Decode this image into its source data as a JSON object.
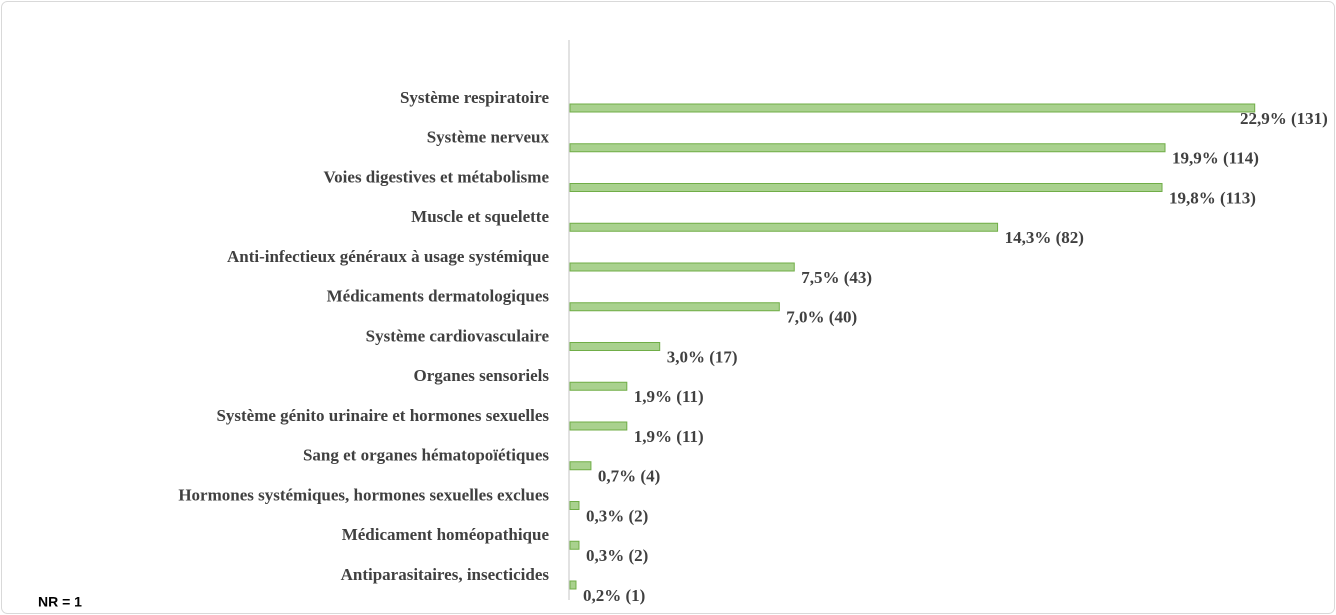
{
  "chart_data": {
    "type": "hbar",
    "categories": [
      "Système respiratoire",
      "Système nerveux",
      "Voies digestives et métabolisme",
      "Muscle et squelette",
      "Anti-infectieux généraux à usage systémique",
      "Médicaments dermatologiques",
      "Système cardiovasculaire",
      "Organes sensoriels",
      "Système génito urinaire et hormones sexuelles",
      "Sang et organes hématopoïétiques",
      "Hormones systémiques, hormones sexuelles exclues",
      "Médicament homéopathique",
      "Antiparasitaires, insecticides"
    ],
    "values": [
      22.9,
      19.9,
      19.8,
      14.3,
      7.5,
      7.0,
      3.0,
      1.9,
      1.9,
      0.7,
      0.3,
      0.3,
      0.2
    ],
    "value_labels": [
      "22,9% (131)",
      "19,9% (114)",
      "19,8% (113)",
      "14,3% (82)",
      "7,5% (43)",
      "7,0% (40)",
      "3,0% (17)",
      "1,9% (11)",
      "1,9% (11)",
      "0,7% (4)",
      "0,3% (2)",
      "0,3% (2)",
      "0,2% (1)"
    ],
    "color": "#a9d18e",
    "annotation": "NR = 1"
  }
}
